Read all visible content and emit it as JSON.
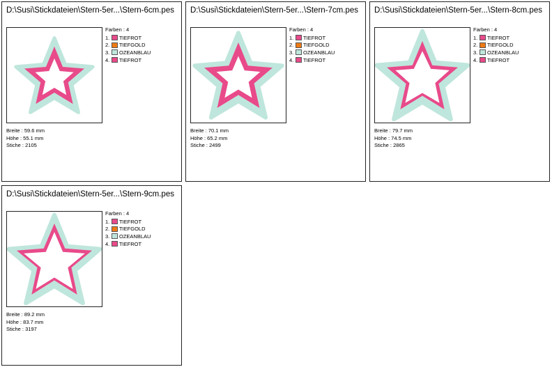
{
  "colors": {
    "tiefrot": "#e84a8a",
    "tiefgold": "#ef7a16",
    "ozeanblau": "#bfe6dc"
  },
  "icons": [
    "star-outline-design"
  ],
  "cards": [
    {
      "title": "D:\\Susi\\Stickdateien\\Stern-5er...\\Stern-6cm.pes",
      "farben_label": "Farben : 4",
      "colors": [
        {
          "num": "1.",
          "name": "TIEFROT",
          "color": "#e84a8a"
        },
        {
          "num": "2.",
          "name": "TIEFGOLD",
          "color": "#ef7a16"
        },
        {
          "num": "3.",
          "name": "OZEANBLAU",
          "color": "#bfe6dc"
        },
        {
          "num": "4.",
          "name": "TIEFROT",
          "color": "#e84a8a"
        }
      ],
      "breite": "Breite : 59.6 mm",
      "hoehe": "Höhe : 55.1 mm",
      "stiche": "Stiche : 2105"
    },
    {
      "title": "D:\\Susi\\Stickdateien\\Stern-5er...\\Stern-7cm.pes",
      "farben_label": "Farben : 4",
      "colors": [
        {
          "num": "1.",
          "name": "TIEFROT",
          "color": "#e84a8a"
        },
        {
          "num": "2.",
          "name": "TIEFGOLD",
          "color": "#ef7a16"
        },
        {
          "num": "3.",
          "name": "OZEANBLAU",
          "color": "#bfe6dc"
        },
        {
          "num": "4.",
          "name": "TIEFROT",
          "color": "#e84a8a"
        }
      ],
      "breite": "Breite : 70.1 mm",
      "hoehe": "Höhe : 65.2 mm",
      "stiche": "Stiche : 2499"
    },
    {
      "title": "D:\\Susi\\Stickdateien\\Stern-5er...\\Stern-8cm.pes",
      "farben_label": "Farben : 4",
      "colors": [
        {
          "num": "1.",
          "name": "TIEFROT",
          "color": "#e84a8a"
        },
        {
          "num": "2.",
          "name": "TIEFGOLD",
          "color": "#ef7a16"
        },
        {
          "num": "3.",
          "name": "OZEANBLAU",
          "color": "#bfe6dc"
        },
        {
          "num": "4.",
          "name": "TIEFROT",
          "color": "#e84a8a"
        }
      ],
      "breite": "Breite : 79.7 mm",
      "hoehe": "Höhe : 74.5 mm",
      "stiche": "Stiche : 2865"
    },
    {
      "title": "D:\\Susi\\Stickdateien\\Stern-5er...\\Stern-9cm.pes",
      "farben_label": "Farben : 4",
      "colors": [
        {
          "num": "1.",
          "name": "TIEFROT",
          "color": "#e84a8a"
        },
        {
          "num": "2.",
          "name": "TIEFGOLD",
          "color": "#ef7a16"
        },
        {
          "num": "3.",
          "name": "OZEANBLAU",
          "color": "#bfe6dc"
        },
        {
          "num": "4.",
          "name": "TIEFROT",
          "color": "#e84a8a"
        }
      ],
      "breite": "Breite : 89.2 mm",
      "hoehe": "Höhe : 83.7 mm",
      "stiche": "Stiche : 3197"
    }
  ]
}
